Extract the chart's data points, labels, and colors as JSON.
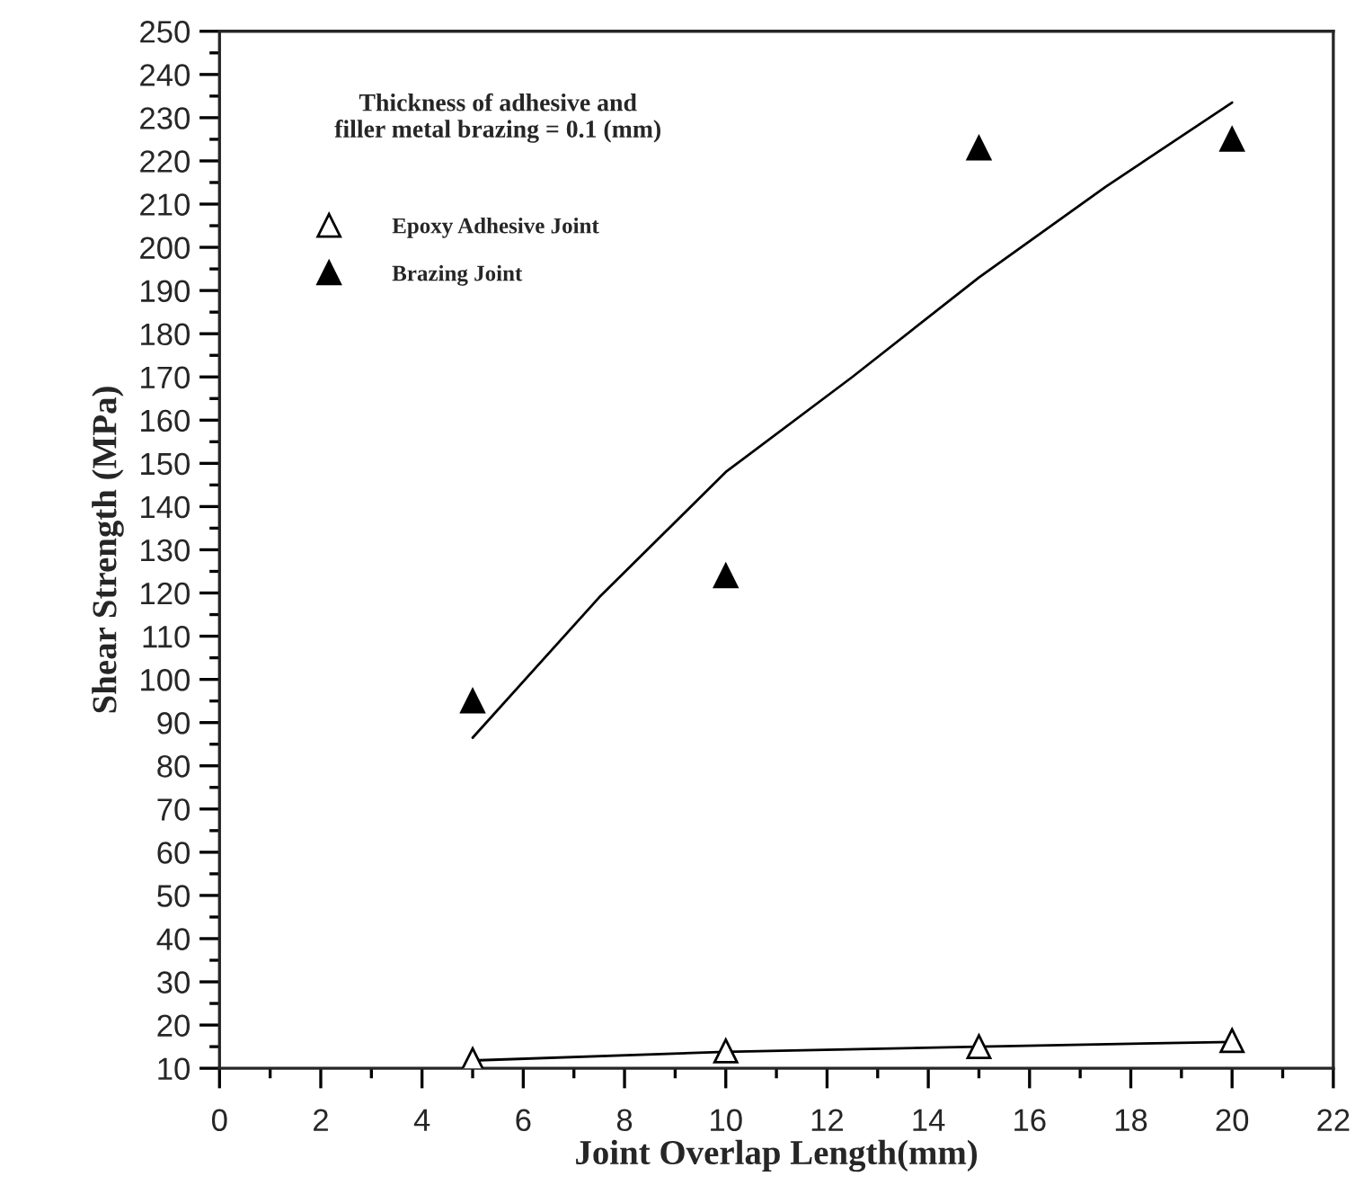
{
  "chart_data": {
    "type": "scatter",
    "xlabel": "Joint Overlap Length(mm)",
    "ylabel": "Shear Strength (MPa)",
    "annotations": [
      "Thickness of adhesive and\nfiller metal brazing = 0.1 (mm)"
    ],
    "xlim": [
      0,
      22
    ],
    "xticks": [
      0,
      2,
      4,
      6,
      8,
      10,
      12,
      14,
      16,
      18,
      20,
      22
    ],
    "ylim": [
      10,
      250
    ],
    "yticks": [
      10,
      20,
      30,
      40,
      50,
      60,
      70,
      80,
      90,
      100,
      110,
      120,
      130,
      140,
      150,
      160,
      170,
      180,
      190,
      200,
      210,
      220,
      230,
      240,
      250
    ],
    "grid": false,
    "legend": "top left",
    "series": [
      {
        "name": "Epoxy Adhesive Joint",
        "marker": "triangle",
        "color": "#ffffff",
        "x": [
          5,
          10,
          15,
          20
        ],
        "values": [
          12,
          14,
          15,
          16.4
        ]
      },
      {
        "name": "Brazing Joint",
        "marker": "triangle",
        "color": "#000000",
        "x": [
          5,
          10,
          15,
          20
        ],
        "values": [
          95,
          124,
          223,
          225
        ]
      },
      {
        "type": "line",
        "marker": "none",
        "line_style": "solid",
        "color": "#000000",
        "x": [
          5,
          10,
          15,
          20
        ],
        "values": [
          11.8,
          13.8,
          15,
          16.1
        ]
      },
      {
        "type": "line",
        "marker": "none",
        "line_style": "solid",
        "color": "#000000",
        "x": [
          5,
          7.5,
          10,
          12.5,
          15,
          17.5,
          20
        ],
        "values": [
          86.5,
          119,
          148,
          170,
          193,
          214,
          233.5
        ]
      }
    ]
  }
}
